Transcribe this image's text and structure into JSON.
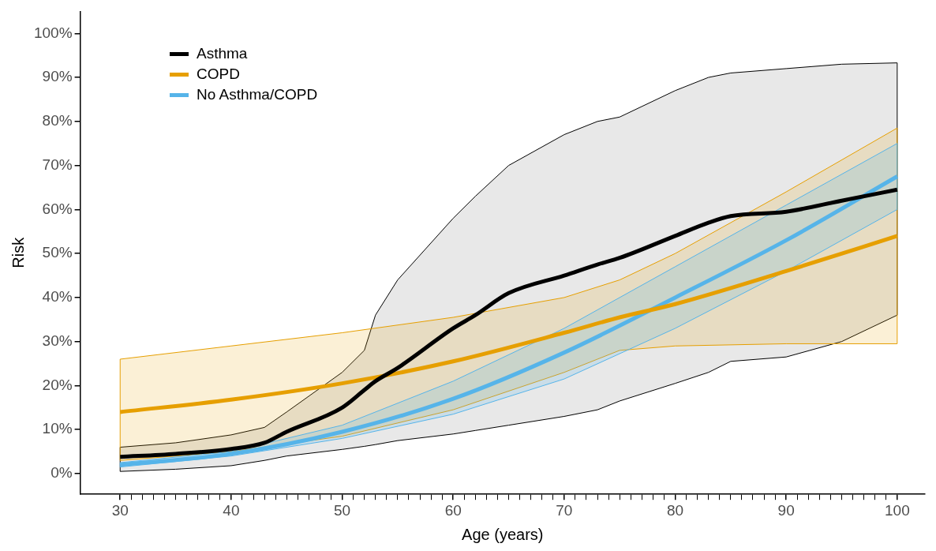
{
  "chart_data": {
    "type": "line",
    "xlabel": "Age (years)",
    "ylabel": "Risk",
    "legend": "top left",
    "grid": false,
    "marker": "none",
    "line_style": "solid",
    "xlim": [
      26.4,
      102.5
    ],
    "ylim": [
      -4.7,
      105
    ],
    "xticks": [
      30,
      {
        "value": 31,
        "label": null
      },
      {
        "value": 32,
        "label": null
      },
      {
        "value": 33,
        "label": null
      },
      {
        "value": 34,
        "label": null
      },
      {
        "value": 35,
        "label": null
      },
      {
        "value": 36,
        "label": null
      },
      {
        "value": 37,
        "label": null
      },
      {
        "value": 38,
        "label": null
      },
      {
        "value": 39,
        "label": null
      },
      40,
      {
        "value": 41,
        "label": null
      },
      {
        "value": 42,
        "label": null
      },
      {
        "value": 43,
        "label": null
      },
      {
        "value": 44,
        "label": null
      },
      {
        "value": 45,
        "label": null
      },
      {
        "value": 46,
        "label": null
      },
      {
        "value": 47,
        "label": null
      },
      {
        "value": 48,
        "label": null
      },
      {
        "value": 49,
        "label": null
      },
      50,
      {
        "value": 51,
        "label": null
      },
      {
        "value": 52,
        "label": null
      },
      {
        "value": 53,
        "label": null
      },
      {
        "value": 54,
        "label": null
      },
      {
        "value": 55,
        "label": null
      },
      {
        "value": 56,
        "label": null
      },
      {
        "value": 57,
        "label": null
      },
      {
        "value": 58,
        "label": null
      },
      {
        "value": 59,
        "label": null
      },
      60,
      {
        "value": 61,
        "label": null
      },
      {
        "value": 62,
        "label": null
      },
      {
        "value": 63,
        "label": null
      },
      {
        "value": 64,
        "label": null
      },
      {
        "value": 65,
        "label": null
      },
      {
        "value": 66,
        "label": null
      },
      {
        "value": 67,
        "label": null
      },
      {
        "value": 68,
        "label": null
      },
      {
        "value": 69,
        "label": null
      },
      70,
      {
        "value": 71,
        "label": null
      },
      {
        "value": 72,
        "label": null
      },
      {
        "value": 73,
        "label": null
      },
      {
        "value": 74,
        "label": null
      },
      {
        "value": 75,
        "label": null
      },
      {
        "value": 76,
        "label": null
      },
      {
        "value": 77,
        "label": null
      },
      {
        "value": 78,
        "label": null
      },
      {
        "value": 79,
        "label": null
      },
      80,
      {
        "value": 81,
        "label": null
      },
      {
        "value": 82,
        "label": null
      },
      {
        "value": 83,
        "label": null
      },
      {
        "value": 84,
        "label": null
      },
      {
        "value": 85,
        "label": null
      },
      {
        "value": 86,
        "label": null
      },
      {
        "value": 87,
        "label": null
      },
      {
        "value": 88,
        "label": null
      },
      {
        "value": 89,
        "label": null
      },
      90,
      {
        "value": 91,
        "label": null
      },
      {
        "value": 92,
        "label": null
      },
      {
        "value": 93,
        "label": null
      },
      {
        "value": 94,
        "label": null
      },
      {
        "value": 95,
        "label": null
      },
      {
        "value": 96,
        "label": null
      },
      {
        "value": 97,
        "label": null
      },
      {
        "value": 98,
        "label": null
      },
      {
        "value": 99,
        "label": null
      },
      100
    ],
    "yticks": [
      {
        "value": 0,
        "label": "0%"
      },
      {
        "value": 10,
        "label": "10%"
      },
      {
        "value": 20,
        "label": "20%"
      },
      {
        "value": 30,
        "label": "30%"
      },
      {
        "value": 40,
        "label": "40%"
      },
      {
        "value": 50,
        "label": "50%"
      },
      {
        "value": 60,
        "label": "60%"
      },
      {
        "value": 70,
        "label": "70%"
      },
      {
        "value": 80,
        "label": "80%"
      },
      {
        "value": 90,
        "label": "90%"
      },
      {
        "value": 100,
        "label": "100%"
      }
    ],
    "series": [
      {
        "name": "Asthma",
        "color": "#000000",
        "x": [
          30,
          35,
          40,
          43,
          45,
          50,
          52,
          53,
          55,
          60,
          62,
          65,
          70,
          73,
          75,
          80,
          83,
          85,
          90,
          95,
          100
        ],
        "values": [
          3.8,
          4.5,
          5.6,
          7,
          9.5,
          15,
          19,
          21,
          24,
          33,
          36,
          41,
          45,
          47.5,
          49,
          54,
          57,
          58.5,
          59.5,
          62,
          64.5
        ],
        "lower": [
          0.5,
          1,
          1.8,
          3,
          4,
          5.5,
          6.2,
          6.6,
          7.5,
          9,
          9.8,
          11,
          13,
          14.5,
          16.5,
          20.5,
          23,
          25.5,
          26.5,
          30,
          36
        ],
        "upper": [
          6,
          7,
          8.8,
          10.5,
          14,
          23,
          28,
          36,
          44,
          58,
          63,
          70,
          77,
          80,
          81,
          87,
          90,
          91,
          92,
          93,
          93.3
        ]
      },
      {
        "name": "COPD",
        "color": "#e69f00",
        "x": [
          30,
          40,
          50,
          60,
          70,
          75,
          80,
          90,
          100
        ],
        "values": [
          14,
          16.8,
          20.5,
          25.5,
          32,
          35.5,
          38.5,
          46,
          54
        ],
        "lower": [
          3,
          5,
          8.5,
          14.5,
          23,
          28,
          29,
          29.5,
          29.5
        ],
        "upper": [
          26,
          29,
          32,
          35.5,
          40,
          44,
          50,
          64,
          78.5
        ]
      },
      {
        "name": "No Asthma/COPD",
        "color": "#56b4e9",
        "x": [
          30,
          40,
          50,
          60,
          70,
          80,
          90,
          100
        ],
        "values": [
          2,
          4.5,
          9.5,
          17,
          27.5,
          40,
          53,
          67.5
        ],
        "lower": [
          1.5,
          4,
          8,
          13.5,
          21.5,
          33,
          46,
          60
        ],
        "upper": [
          2.5,
          5,
          11,
          21,
          33,
          47,
          61,
          75
        ]
      }
    ]
  }
}
